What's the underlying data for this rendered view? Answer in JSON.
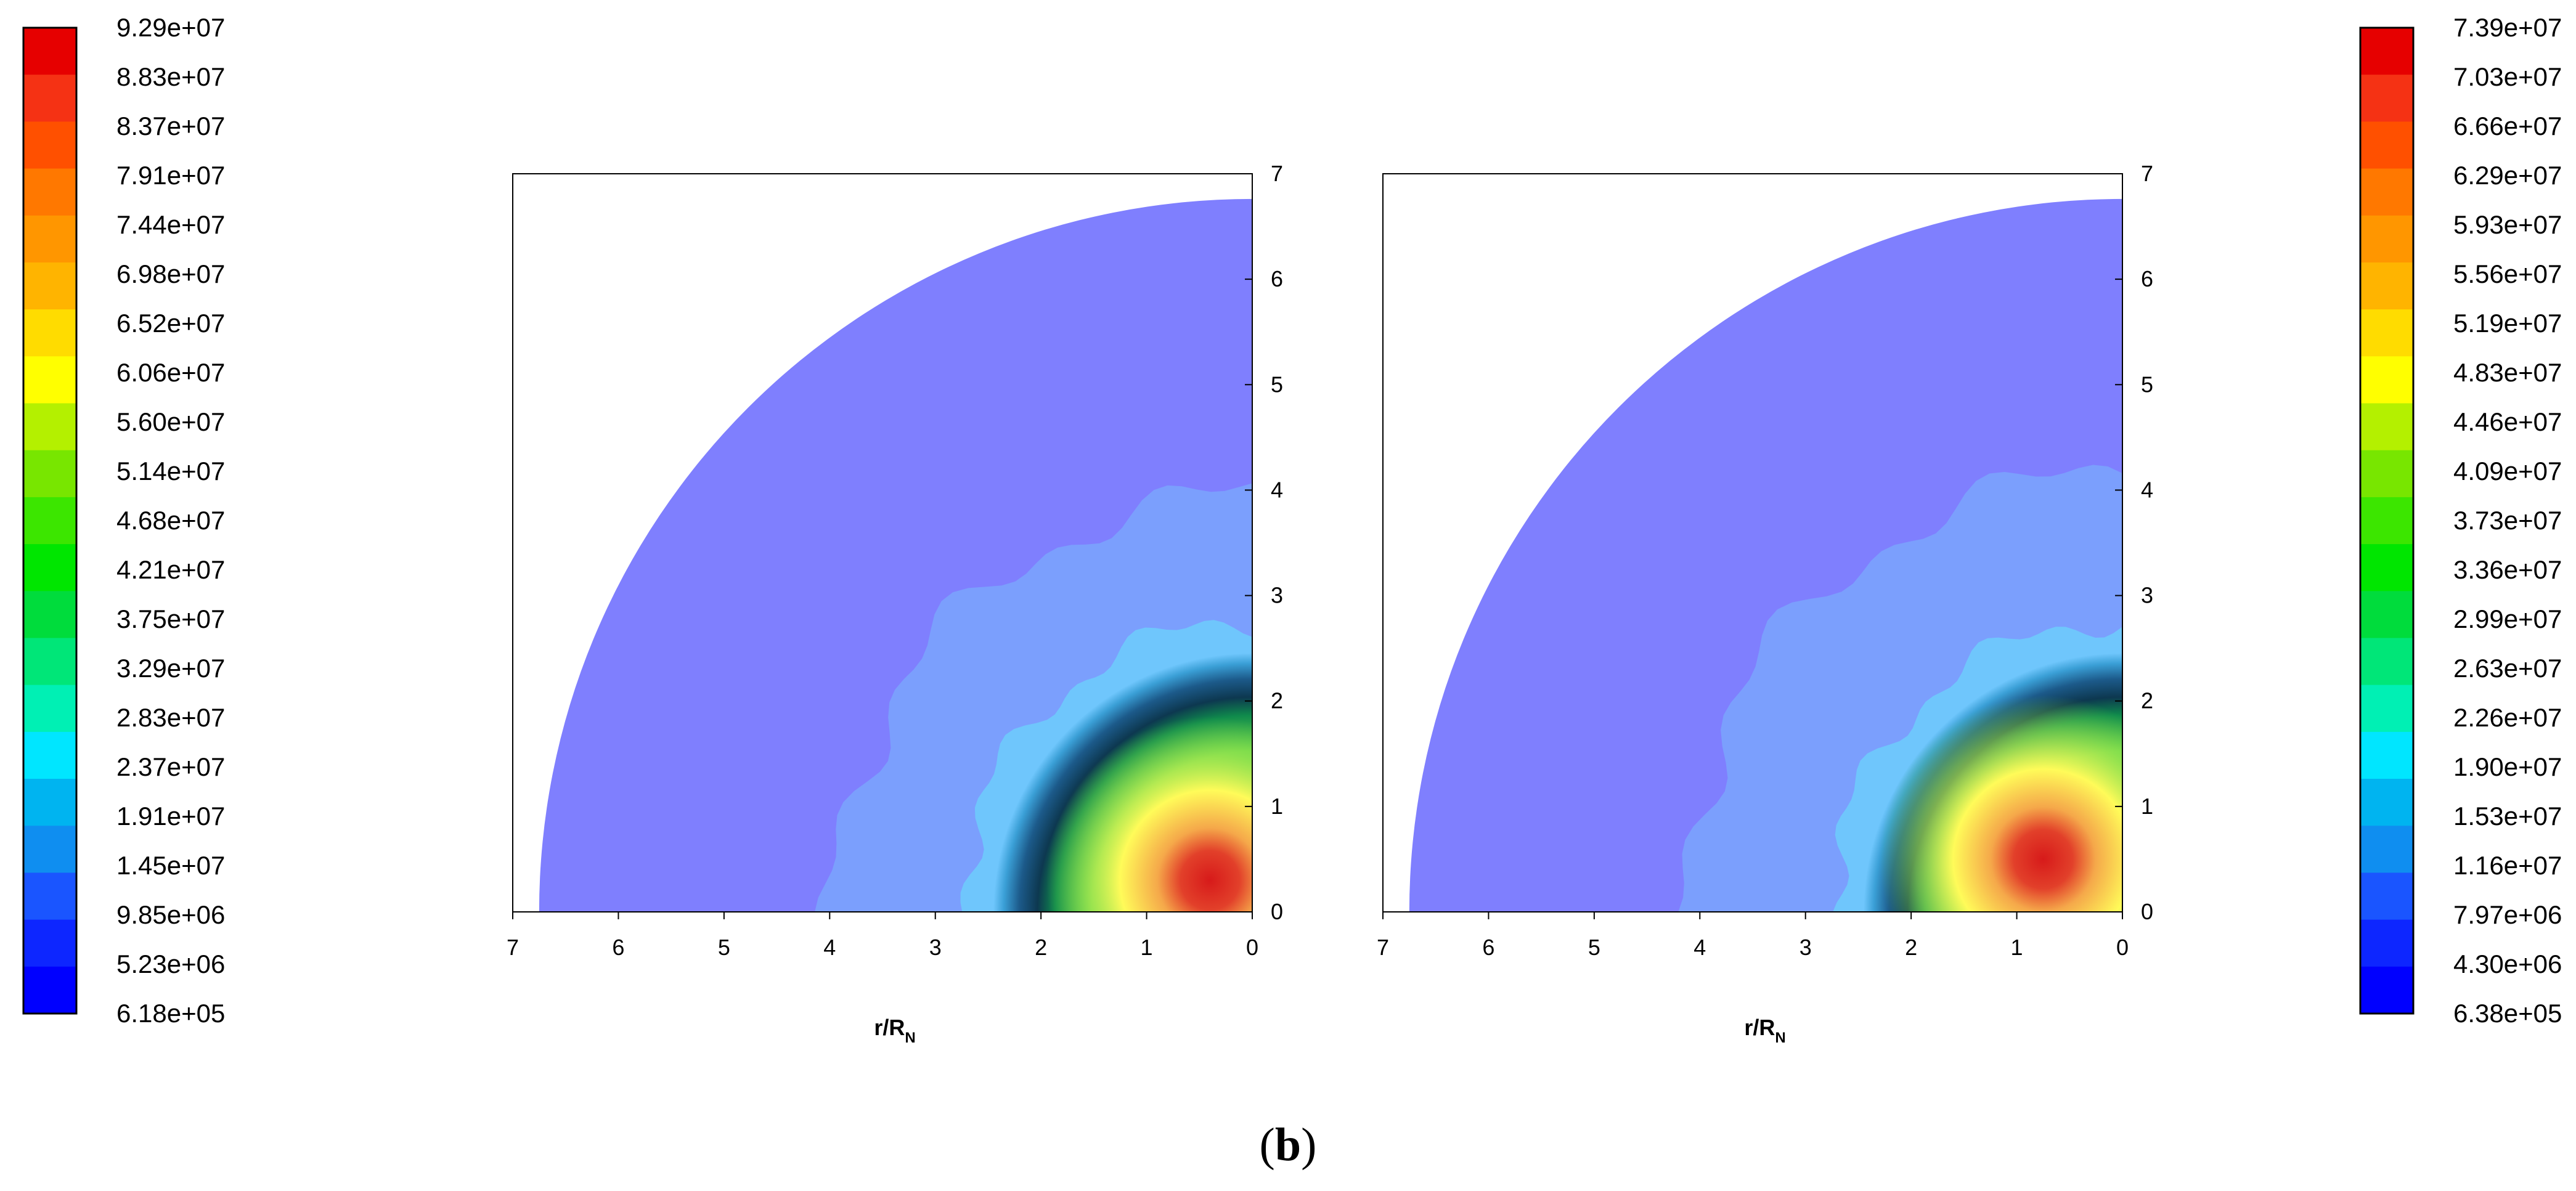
{
  "caption": {
    "open": "(",
    "letter": "b",
    "close": ")"
  },
  "chart_data": [
    {
      "type": "heatmap",
      "title": "",
      "xlabel": "r/R",
      "xlabel_sub": "N",
      "x_ticks": [
        "7",
        "6",
        "5",
        "4",
        "3",
        "2",
        "1",
        "0"
      ],
      "y_ticks": [
        "0",
        "1",
        "2",
        "3",
        "4",
        "5",
        "6",
        "7"
      ],
      "xlim": [
        7,
        0
      ],
      "ylim": [
        0,
        7
      ],
      "domain_radius": 6.75,
      "peak": {
        "x": 0.4,
        "y": 0.3
      },
      "colorbar": {
        "labels": [
          "9.29e+07",
          "8.83e+07",
          "8.37e+07",
          "7.91e+07",
          "7.44e+07",
          "6.98e+07",
          "6.52e+07",
          "6.06e+07",
          "5.60e+07",
          "5.14e+07",
          "4.68e+07",
          "4.21e+07",
          "3.75e+07",
          "3.29e+07",
          "2.83e+07",
          "2.37e+07",
          "1.91e+07",
          "1.45e+07",
          "9.85e+06",
          "5.23e+06",
          "6.18e+05"
        ],
        "min": 618000,
        "max": 92900000
      }
    },
    {
      "type": "heatmap",
      "title": "",
      "xlabel": "r/R",
      "xlabel_sub": "N",
      "x_ticks": [
        "7",
        "6",
        "5",
        "4",
        "3",
        "2",
        "1",
        "0"
      ],
      "y_ticks": [
        "0",
        "1",
        "2",
        "3",
        "4",
        "5",
        "6",
        "7"
      ],
      "xlim": [
        7,
        0
      ],
      "ylim": [
        0,
        7
      ],
      "domain_radius": 6.75,
      "peak": {
        "x": 0.75,
        "y": 0.5
      },
      "colorbar": {
        "labels": [
          "7.39e+07",
          "7.03e+07",
          "6.66e+07",
          "6.29e+07",
          "5.93e+07",
          "5.56e+07",
          "5.19e+07",
          "4.83e+07",
          "4.46e+07",
          "4.09e+07",
          "3.73e+07",
          "3.36e+07",
          "2.99e+07",
          "2.63e+07",
          "2.26e+07",
          "1.90e+07",
          "1.53e+07",
          "1.16e+07",
          "7.97e+06",
          "4.30e+06",
          "6.38e+05"
        ],
        "min": 638000,
        "max": 73900000
      }
    }
  ],
  "colors": [
    "#0000ff",
    "#0d26ff",
    "#1a55ff",
    "#0f8ef0",
    "#00b4f0",
    "#00e6ff",
    "#00f0b4",
    "#00e678",
    "#00dc3c",
    "#00e600",
    "#3ce600",
    "#78e600",
    "#b4f000",
    "#ffff00",
    "#ffdc00",
    "#ffb400",
    "#ff9600",
    "#ff7800",
    "#ff5000",
    "#f53214",
    "#e60000"
  ],
  "contour_colors": {
    "background": "#7f7ffe",
    "outer_band": "#7b9ffd",
    "mid_band": "#6fc6fc",
    "ring_dark": "#0d3850",
    "ring_green": "#0f8a4c",
    "core_green": "#6cd84a",
    "core_yellow": "#fffb59",
    "core_orange": "#f5a84a",
    "core_red": "#d71a1a",
    "near_axis": "#f6c26a"
  }
}
